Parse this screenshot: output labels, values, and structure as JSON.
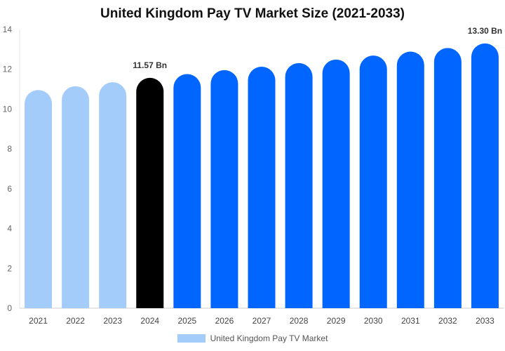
{
  "chart_data": {
    "type": "bar",
    "title": "United Kingdom Pay TV Market Size (2021-2033)",
    "categories": [
      "2021",
      "2022",
      "2023",
      "2024",
      "2025",
      "2026",
      "2027",
      "2028",
      "2029",
      "2030",
      "2031",
      "2032",
      "2033"
    ],
    "series": [
      {
        "name": "United Kingdom Pay TV Market",
        "values": [
          10.96,
          11.15,
          11.35,
          11.57,
          11.76,
          11.96,
          12.13,
          12.31,
          12.49,
          12.69,
          12.89,
          13.07,
          13.3
        ]
      }
    ],
    "bar_colors": [
      "#a3ccfb",
      "#a3ccfb",
      "#a3ccfb",
      "#000000",
      "#0066ff",
      "#0066ff",
      "#0066ff",
      "#0066ff",
      "#0066ff",
      "#0066ff",
      "#0066ff",
      "#0066ff",
      "#0066ff"
    ],
    "data_labels": [
      {
        "index": 3,
        "text": "11.57 Bn"
      },
      {
        "index": 12,
        "text": "13.30 Bn"
      }
    ],
    "yticks": [
      "0",
      "2",
      "4",
      "6",
      "8",
      "10",
      "12",
      "14"
    ],
    "ylim": [
      0,
      14
    ],
    "grid": false,
    "legend_position": "bottom"
  },
  "legend": {
    "label": "United Kingdom Pay TV Market",
    "color": "#a3ccfb"
  }
}
